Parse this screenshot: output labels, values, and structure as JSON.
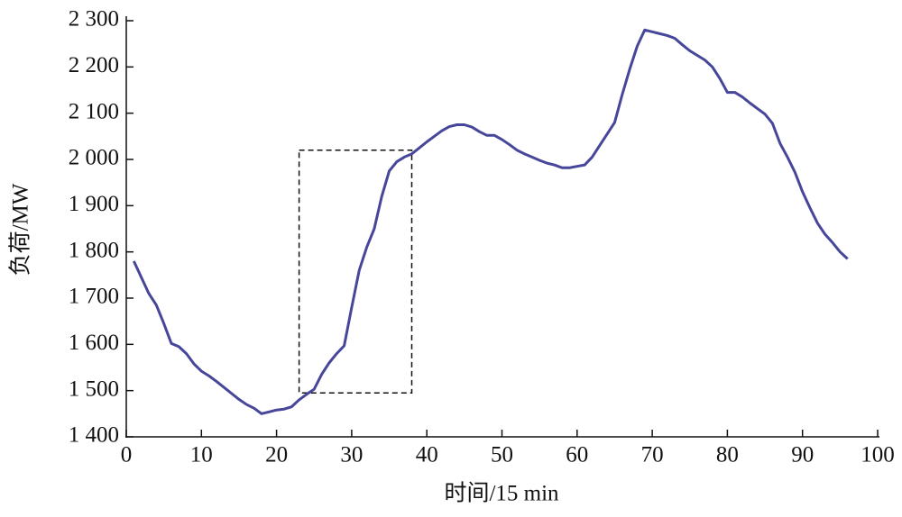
{
  "chart_data": {
    "type": "line",
    "xlabel": "时间/15 min",
    "ylabel": "负荷/MW",
    "color": "#46469a",
    "x": [
      1,
      2,
      3,
      4,
      5,
      6,
      7,
      8,
      9,
      10,
      11,
      12,
      13,
      14,
      15,
      16,
      17,
      18,
      19,
      20,
      21,
      22,
      23,
      24,
      25,
      26,
      27,
      28,
      29,
      30,
      31,
      32,
      33,
      34,
      35,
      36,
      37,
      38,
      39,
      40,
      41,
      42,
      43,
      44,
      45,
      46,
      47,
      48,
      49,
      50,
      51,
      52,
      53,
      54,
      55,
      56,
      57,
      58,
      59,
      60,
      61,
      62,
      63,
      64,
      65,
      66,
      67,
      68,
      69,
      70,
      71,
      72,
      73,
      74,
      75,
      76,
      77,
      78,
      79,
      80,
      81,
      82,
      83,
      84,
      85,
      86,
      87,
      88,
      89,
      90,
      91,
      92,
      93,
      94,
      95,
      96
    ],
    "values": [
      1780,
      1745,
      1710,
      1685,
      1645,
      1602,
      1595,
      1580,
      1558,
      1542,
      1532,
      1520,
      1507,
      1494,
      1481,
      1470,
      1462,
      1450,
      1454,
      1458,
      1460,
      1465,
      1480,
      1492,
      1503,
      1535,
      1560,
      1580,
      1597,
      1680,
      1760,
      1810,
      1850,
      1920,
      1975,
      1995,
      2005,
      2012,
      2025,
      2038,
      2050,
      2062,
      2071,
      2075,
      2075,
      2070,
      2060,
      2052,
      2052,
      2043,
      2032,
      2020,
      2012,
      2005,
      1998,
      1992,
      1988,
      1982,
      1982,
      1985,
      1988,
      2005,
      2030,
      2055,
      2080,
      2140,
      2195,
      2245,
      2280,
      2276,
      2272,
      2268,
      2262,
      2248,
      2235,
      2225,
      2215,
      2200,
      2175,
      2145,
      2145,
      2135,
      2122,
      2110,
      2098,
      2078,
      2035,
      2005,
      1972,
      1930,
      1895,
      1862,
      1838,
      1820,
      1800,
      1785
    ],
    "xlim": [
      0,
      100
    ],
    "xticks": [
      0,
      10,
      20,
      30,
      40,
      50,
      60,
      70,
      80,
      90,
      100
    ],
    "ylim": [
      1400,
      2300
    ],
    "yticks": [
      {
        "value": 1400,
        "label": "1 400"
      },
      {
        "value": 1500,
        "label": "1 500"
      },
      {
        "value": 1600,
        "label": "1 600"
      },
      {
        "value": 1700,
        "label": "1 700"
      },
      {
        "value": 1800,
        "label": "1 800"
      },
      {
        "value": 1900,
        "label": "1 900"
      },
      {
        "value": 2000,
        "label": "2 000"
      },
      {
        "value": 2100,
        "label": "2 100"
      },
      {
        "value": 2200,
        "label": "2 200"
      },
      {
        "value": 2300,
        "label": "2 300"
      }
    ]
  }
}
